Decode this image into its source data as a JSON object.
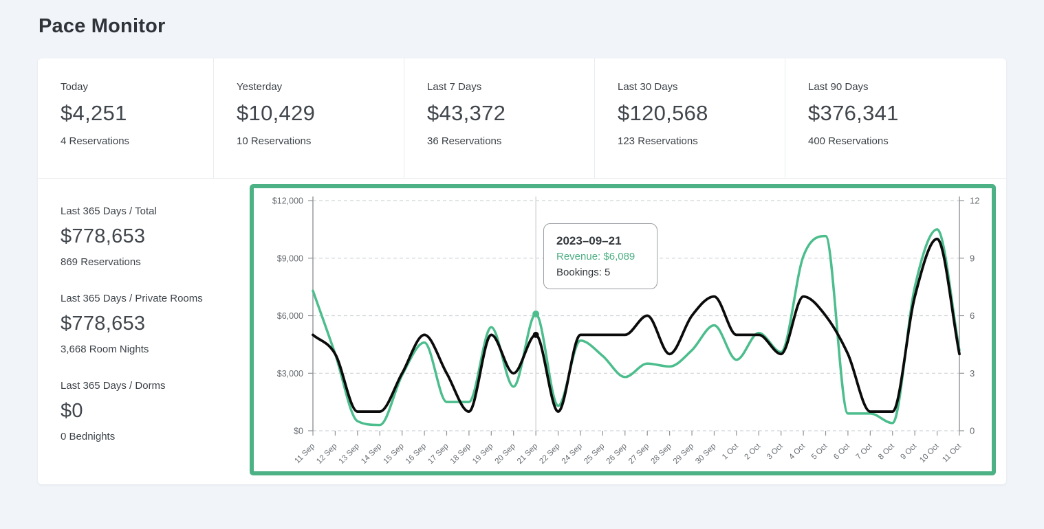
{
  "page": {
    "title": "Pace Monitor"
  },
  "stat_cards": [
    {
      "label": "Today",
      "value": "$4,251",
      "sub": "4 Reservations"
    },
    {
      "label": "Yesterday",
      "value": "$10,429",
      "sub": "10 Reservations"
    },
    {
      "label": "Last 7 Days",
      "value": "$43,372",
      "sub": "36 Reservations"
    },
    {
      "label": "Last 30 Days",
      "value": "$120,568",
      "sub": "123 Reservations"
    },
    {
      "label": "Last 90 Days",
      "value": "$376,341",
      "sub": "400 Reservations"
    }
  ],
  "side_stats": [
    {
      "label": "Last 365 Days / Total",
      "value": "$778,653",
      "sub": "869 Reservations"
    },
    {
      "label": "Last 365 Days / Private Rooms",
      "value": "$778,653",
      "sub": "3,668 Room Nights"
    },
    {
      "label": "Last 365 Days / Dorms",
      "value": "$0",
      "sub": "0 Bednights"
    }
  ],
  "tooltip": {
    "date": "2023–09–21",
    "revenue_line": "Revenue: $6,089",
    "bookings_line": "Bookings: 5"
  },
  "colors": {
    "accent_green": "#4cbd8c",
    "highlight_border": "#4cb285",
    "bookings_black": "#0b0b0b",
    "gridline": "#d0d3d7",
    "axis_line": "#8f9296",
    "axis_text": "#666b70",
    "crosshair": "#d6d8db"
  },
  "chart_data": {
    "type": "line",
    "title": "",
    "x": [
      "11 Sep",
      "12 Sep",
      "13 Sep",
      "14 Sep",
      "15 Sep",
      "16 Sep",
      "17 Sep",
      "18 Sep",
      "19 Sep",
      "20 Sep",
      "21 Sep",
      "22 Sep",
      "24 Sep",
      "25 Sep",
      "26 Sep",
      "27 Sep",
      "28 Sep",
      "29 Sep",
      "30 Sep",
      "1 Oct",
      "2 Oct",
      "3 Oct",
      "4 Oct",
      "5 Oct",
      "6 Oct",
      "7 Oct",
      "8 Oct",
      "9 Oct",
      "10 Oct",
      "11 Oct"
    ],
    "series": [
      {
        "name": "Revenue",
        "axis": "left",
        "color": "#4cbd8c",
        "width": 3.5,
        "values": [
          7300,
          4000,
          500,
          300,
          2900,
          4600,
          1500,
          1500,
          5400,
          2300,
          6089,
          1300,
          4700,
          3900,
          2800,
          3500,
          3350,
          4200,
          5500,
          3700,
          5100,
          4100,
          9100,
          10150,
          900,
          900,
          400,
          7500,
          10500,
          4200
        ]
      },
      {
        "name": "Bookings",
        "axis": "right",
        "color": "#0b0b0b",
        "width": 3.8,
        "values": [
          5,
          4,
          1,
          1,
          3,
          5,
          3,
          1,
          5,
          3,
          5,
          1,
          5,
          5,
          5,
          6,
          4,
          6,
          7,
          5,
          5,
          4,
          7,
          6,
          4,
          1,
          1,
          7,
          10,
          4
        ]
      }
    ],
    "left_axis": {
      "ticks": [
        "$0",
        "$3,000",
        "$6,000",
        "$9,000",
        "$12,000"
      ],
      "range": [
        0,
        12000
      ]
    },
    "right_axis": {
      "ticks": [
        "0",
        "3",
        "6",
        "9",
        "12"
      ],
      "range": [
        0,
        12
      ]
    },
    "grid": "dashed-horizontal",
    "legend": "none",
    "smoothing": "monotone",
    "highlight": {
      "index": 10,
      "date": "2023–09–21",
      "revenue": 6089,
      "bookings": 5
    }
  }
}
